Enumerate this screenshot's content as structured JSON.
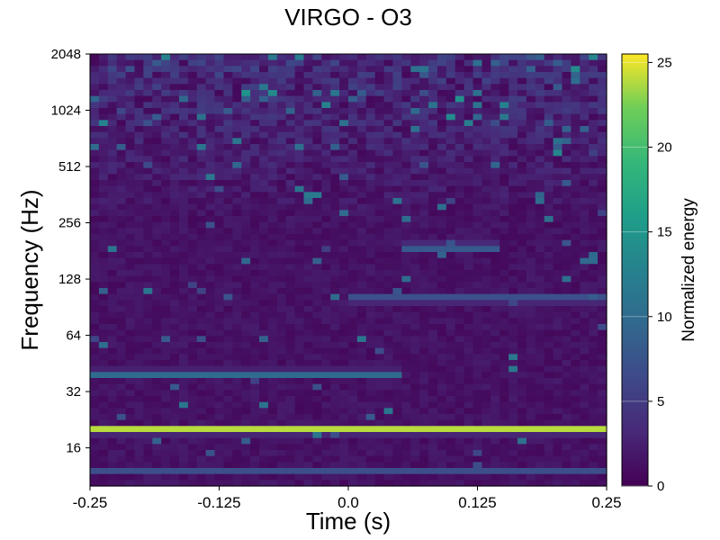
{
  "chart_data": {
    "type": "heatmap",
    "title": "VIRGO - O3",
    "xlabel": "Time (s)",
    "ylabel": "Frequency (Hz)",
    "xlim": [
      -0.25,
      0.25
    ],
    "ylim": [
      10,
      2048
    ],
    "yscale": "log2",
    "xticks": [
      "-0.25",
      "-0.125",
      "0.0",
      "0.125",
      "0.25"
    ],
    "xtick_values": [
      -0.25,
      -0.125,
      0.0,
      0.125,
      0.25
    ],
    "yticks": [
      "16",
      "32",
      "64",
      "128",
      "256",
      "512",
      "1024",
      "2048"
    ],
    "ytick_values": [
      16,
      32,
      64,
      128,
      256,
      512,
      1024,
      2048
    ],
    "colormap": "viridis",
    "colorbar": {
      "label": "Normalized energy",
      "range": [
        0,
        25.5
      ],
      "ticks": [
        "0",
        "5",
        "10",
        "15",
        "20",
        "25"
      ],
      "tick_values": [
        0,
        5,
        10,
        15,
        20,
        25
      ]
    },
    "features": [
      {
        "description": "strong horizontal line",
        "frequency_hz": 20,
        "time_range": [
          -0.25,
          0.25
        ],
        "energy": 25
      },
      {
        "description": "moderate horizontal line",
        "frequency_hz": 40,
        "time_range": [
          -0.25,
          0.05
        ],
        "energy": 12
      },
      {
        "description": "moderate line",
        "frequency_hz": 100,
        "time_range": [
          0.0,
          0.25
        ],
        "energy": 10
      },
      {
        "description": "weak line",
        "frequency_hz": 12,
        "time_range": [
          -0.25,
          0.25
        ],
        "energy": 7
      },
      {
        "description": "diffuse mid-band structure",
        "frequency_hz": 190,
        "time_range": [
          0.05,
          0.15
        ],
        "energy": 11
      }
    ]
  }
}
